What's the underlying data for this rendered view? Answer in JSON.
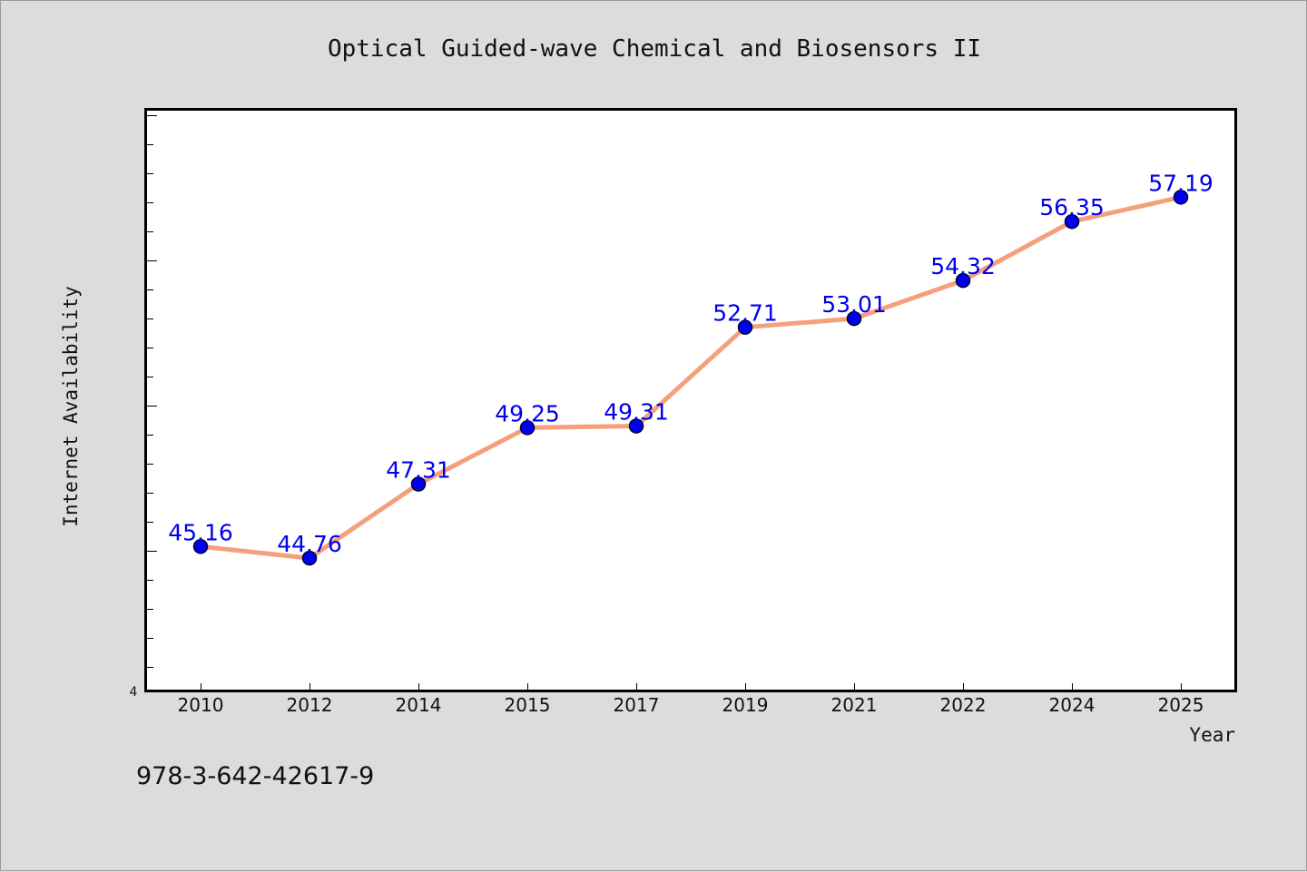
{
  "chart_data": {
    "type": "line",
    "title": "Optical Guided-wave Chemical and Biosensors II",
    "xlabel": "Year",
    "ylabel": "Internet Availability",
    "categories": [
      "2010",
      "2012",
      "2014",
      "2015",
      "2017",
      "2019",
      "2021",
      "2022",
      "2024",
      "2025"
    ],
    "series": [
      {
        "values": [
          45.16,
          44.76,
          47.31,
          49.25,
          49.31,
          52.71,
          53.01,
          54.32,
          56.35,
          57.19
        ]
      }
    ],
    "data_labels": [
      "45.16",
      "44.76",
      "47.31",
      "49.25",
      "49.31",
      "52.71",
      "53.01",
      "54.32",
      "56.35",
      "57.19"
    ],
    "y_axis_visible_tick_label": "4",
    "ylim": [
      40.2,
      60.2
    ],
    "y_minor_tick_step": 1,
    "grid": false,
    "legend": "none",
    "colors": {
      "line": "#f4a07c",
      "marker_fill": "#0000ee",
      "marker_edge": "#000033",
      "data_label": "#0000ee",
      "plot_background": "#ffffff",
      "page_background": "#dcdcdc"
    }
  },
  "footer": {
    "isbn": "978-3-642-42617-9"
  }
}
